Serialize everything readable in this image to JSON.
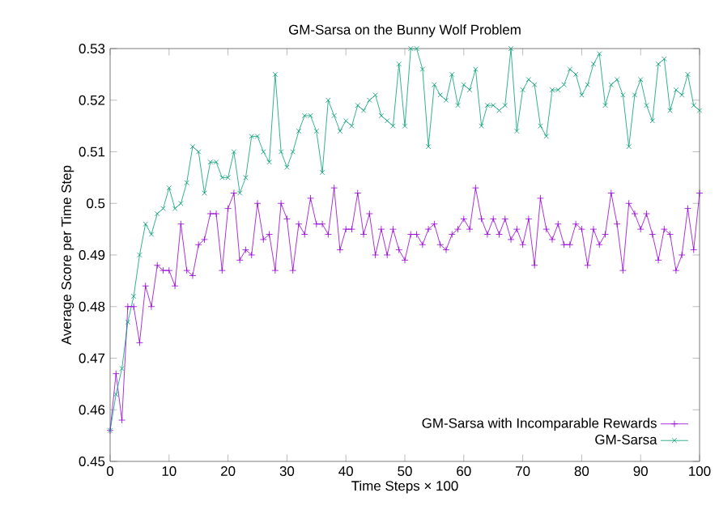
{
  "chart_data": {
    "type": "line",
    "title": "GM-Sarsa on the Bunny Wolf Problem",
    "xlabel": "Time Steps × 100",
    "ylabel": "Average Score per Time Step",
    "x": [
      0,
      1,
      2,
      3,
      4,
      5,
      6,
      7,
      8,
      9,
      10,
      11,
      12,
      13,
      14,
      15,
      16,
      17,
      18,
      19,
      20,
      21,
      22,
      23,
      24,
      25,
      26,
      27,
      28,
      29,
      30,
      31,
      32,
      33,
      34,
      35,
      36,
      37,
      38,
      39,
      40,
      41,
      42,
      43,
      44,
      45,
      46,
      47,
      48,
      49,
      50,
      51,
      52,
      53,
      54,
      55,
      56,
      57,
      58,
      59,
      60,
      61,
      62,
      63,
      64,
      65,
      66,
      67,
      68,
      69,
      70,
      71,
      72,
      73,
      74,
      75,
      76,
      77,
      78,
      79,
      80,
      81,
      82,
      83,
      84,
      85,
      86,
      87,
      88,
      89,
      90,
      91,
      92,
      93,
      94,
      95,
      96,
      97,
      98,
      99,
      100
    ],
    "series": [
      {
        "name": "GM-Sarsa with Incomparable Rewards",
        "color": "#9400d3",
        "marker": "plus",
        "values": [
          0.456,
          0.467,
          0.458,
          0.48,
          0.48,
          0.473,
          0.484,
          0.48,
          0.488,
          0.487,
          0.487,
          0.484,
          0.496,
          0.487,
          0.486,
          0.492,
          0.493,
          0.498,
          0.498,
          0.487,
          0.499,
          0.502,
          0.489,
          0.491,
          0.49,
          0.5,
          0.493,
          0.494,
          0.487,
          0.5,
          0.497,
          0.487,
          0.496,
          0.494,
          0.501,
          0.496,
          0.496,
          0.494,
          0.503,
          0.491,
          0.495,
          0.495,
          0.502,
          0.494,
          0.498,
          0.49,
          0.495,
          0.49,
          0.495,
          0.491,
          0.489,
          0.494,
          0.494,
          0.492,
          0.495,
          0.496,
          0.492,
          0.491,
          0.494,
          0.495,
          0.497,
          0.495,
          0.503,
          0.497,
          0.494,
          0.497,
          0.494,
          0.497,
          0.493,
          0.495,
          0.492,
          0.497,
          0.488,
          0.501,
          0.495,
          0.493,
          0.496,
          0.492,
          0.492,
          0.496,
          0.495,
          0.488,
          0.495,
          0.492,
          0.494,
          0.502,
          0.496,
          0.487,
          0.5,
          0.498,
          0.495,
          0.498,
          0.494,
          0.489,
          0.495,
          0.494,
          0.487,
          0.49,
          0.499,
          0.491,
          0.502
        ]
      },
      {
        "name": "GM-Sarsa",
        "color": "#009e73",
        "marker": "cross",
        "values": [
          0.456,
          0.463,
          0.468,
          0.477,
          0.482,
          0.49,
          0.496,
          0.494,
          0.498,
          0.499,
          0.503,
          0.499,
          0.5,
          0.504,
          0.511,
          0.51,
          0.502,
          0.508,
          0.508,
          0.505,
          0.505,
          0.51,
          0.502,
          0.505,
          0.513,
          0.513,
          0.51,
          0.508,
          0.525,
          0.51,
          0.507,
          0.51,
          0.514,
          0.517,
          0.517,
          0.514,
          0.506,
          0.52,
          0.517,
          0.514,
          0.516,
          0.515,
          0.519,
          0.518,
          0.52,
          0.521,
          0.517,
          0.516,
          0.515,
          0.527,
          0.515,
          0.53,
          0.53,
          0.526,
          0.511,
          0.523,
          0.521,
          0.52,
          0.525,
          0.519,
          0.523,
          0.522,
          0.526,
          0.515,
          0.519,
          0.519,
          0.518,
          0.519,
          0.53,
          0.514,
          0.522,
          0.524,
          0.523,
          0.515,
          0.513,
          0.522,
          0.522,
          0.523,
          0.526,
          0.525,
          0.521,
          0.523,
          0.527,
          0.529,
          0.519,
          0.523,
          0.524,
          0.521,
          0.511,
          0.521,
          0.524,
          0.519,
          0.516,
          0.527,
          0.528,
          0.518,
          0.522,
          0.521,
          0.525,
          0.519,
          0.518
        ]
      }
    ],
    "xlim": [
      0,
      100
    ],
    "xticks": [
      0,
      10,
      20,
      30,
      40,
      50,
      60,
      70,
      80,
      90,
      100
    ],
    "ylim": [
      0.45,
      0.53
    ],
    "yticks": [
      0.45,
      0.46,
      0.47,
      0.48,
      0.49,
      0.5,
      0.51,
      0.52,
      0.53
    ],
    "legend": "bottom right",
    "line_style": "solid"
  }
}
